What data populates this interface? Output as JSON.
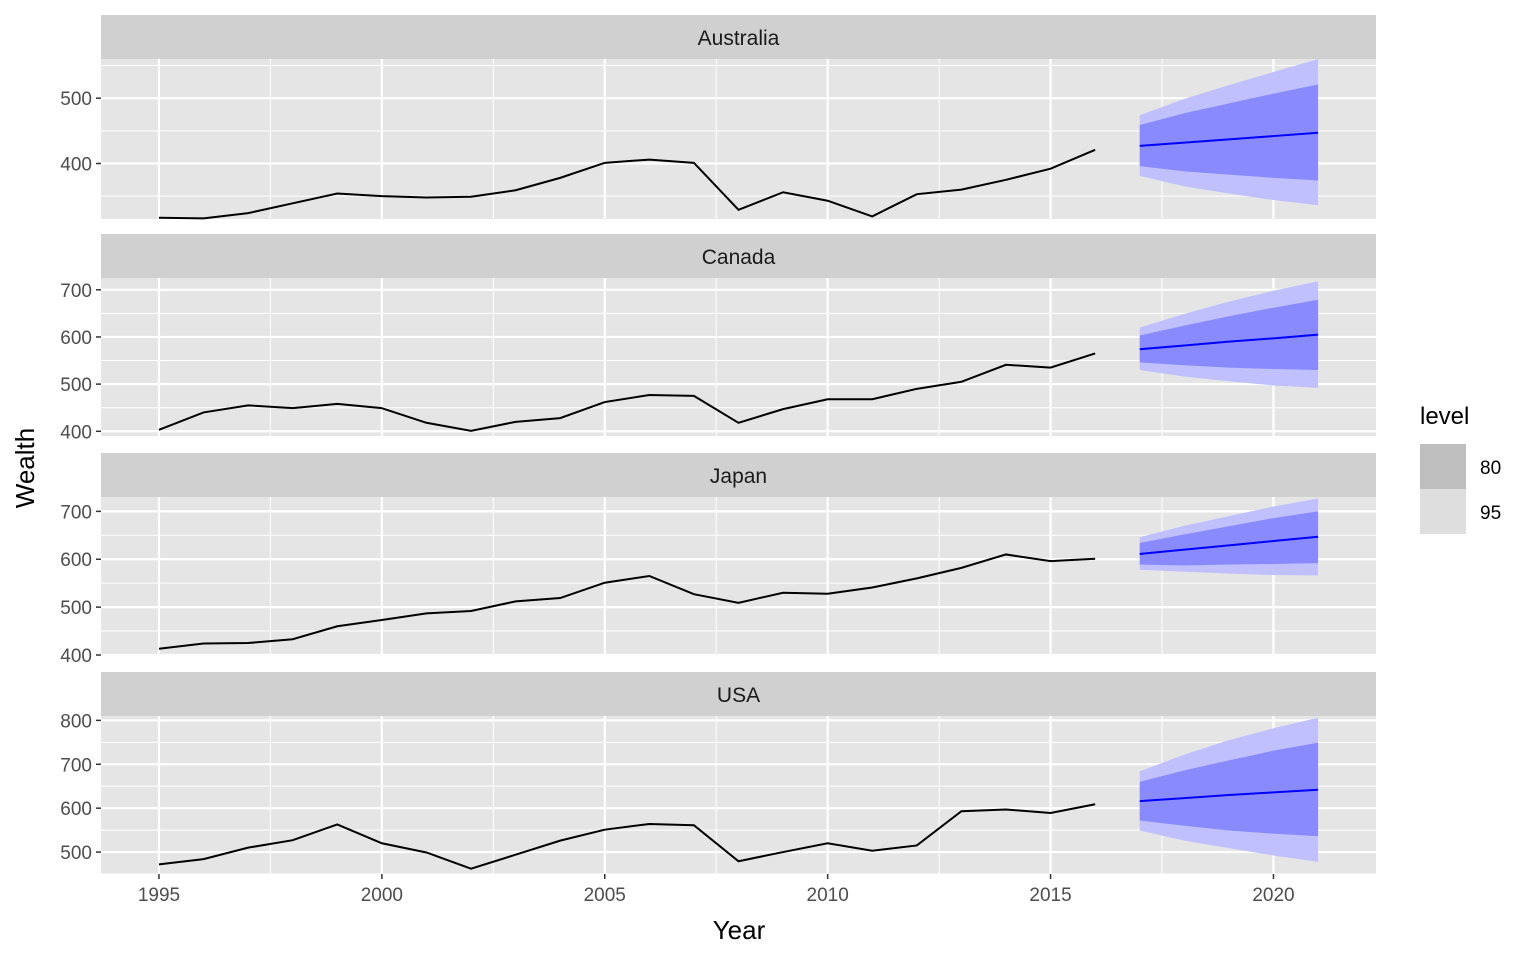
{
  "chart_data": {
    "type": "line",
    "title": "",
    "xlabel": "Year",
    "ylabel": "Wealth",
    "xlim": [
      1993.7,
      2022.3
    ],
    "x_ticks": [
      1995,
      2000,
      2005,
      2010,
      2015,
      2020
    ],
    "grid": true,
    "legend": {
      "title": "level",
      "placement": "right",
      "entries": [
        {
          "label": "80",
          "color": "#bebebe"
        },
        {
          "label": "95",
          "color": "#dedede"
        }
      ]
    },
    "colors": {
      "history_line": "#000000",
      "forecast_line": "#0000ff",
      "band_80": "#8a8aff",
      "band_95": "#c0c0ff",
      "panel_bg": "#e5e5e5",
      "strip_bg": "#d0d0d0",
      "gridline": "#ffffff"
    },
    "panels": [
      {
        "label": "Australia",
        "ylim": [
          315,
          560
        ],
        "y_ticks": [
          400,
          500
        ],
        "history": {
          "x": [
            1995,
            1996,
            1997,
            1998,
            1999,
            2000,
            2001,
            2002,
            2003,
            2004,
            2005,
            2006,
            2007,
            2008,
            2009,
            2010,
            2011,
            2012,
            2013,
            2014,
            2015,
            2016
          ],
          "y": [
            317,
            316,
            324,
            339,
            354,
            350,
            348,
            349,
            359,
            378,
            401,
            406,
            401,
            329,
            356,
            343,
            319,
            353,
            360,
            375,
            392,
            421
          ]
        },
        "forecast": {
          "x": [
            2017,
            2018,
            2019,
            2020,
            2021
          ],
          "mean": [
            427,
            432,
            437,
            442,
            447
          ],
          "lo80": [
            396,
            388,
            383,
            378,
            374
          ],
          "hi80": [
            459,
            477,
            492,
            507,
            521
          ],
          "lo95": [
            381,
            365,
            354,
            344,
            336
          ],
          "hi95": [
            474,
            499,
            520,
            540,
            560
          ]
        }
      },
      {
        "label": "Canada",
        "ylim": [
          390,
          725
        ],
        "y_ticks": [
          400,
          500,
          600,
          700
        ],
        "history": {
          "x": [
            1995,
            1996,
            1997,
            1998,
            1999,
            2000,
            2001,
            2002,
            2003,
            2004,
            2005,
            2006,
            2007,
            2008,
            2009,
            2010,
            2011,
            2012,
            2013,
            2014,
            2015,
            2016
          ],
          "y": [
            403,
            440,
            455,
            449,
            458,
            449,
            418,
            401,
            420,
            428,
            462,
            477,
            475,
            418,
            447,
            468,
            468,
            490,
            505,
            541,
            535,
            565
          ]
        },
        "forecast": {
          "x": [
            2017,
            2018,
            2019,
            2020,
            2021
          ],
          "mean": [
            574,
            582,
            590,
            597,
            605
          ],
          "lo80": [
            546,
            540,
            535,
            532,
            530
          ],
          "hi80": [
            603,
            624,
            644,
            662,
            679
          ],
          "lo95": [
            530,
            516,
            506,
            497,
            492
          ],
          "hi95": [
            620,
            649,
            675,
            698,
            718
          ]
        }
      },
      {
        "label": "Japan",
        "ylim": [
          400,
          730
        ],
        "y_ticks": [
          400,
          500,
          600,
          700
        ],
        "history": {
          "x": [
            1995,
            1996,
            1997,
            1998,
            1999,
            2000,
            2001,
            2002,
            2003,
            2004,
            2005,
            2006,
            2007,
            2008,
            2009,
            2010,
            2011,
            2012,
            2013,
            2014,
            2015,
            2016
          ],
          "y": [
            413,
            424,
            425,
            433,
            460,
            473,
            487,
            492,
            512,
            519,
            551,
            565,
            527,
            509,
            530,
            528,
            541,
            560,
            582,
            610,
            596,
            601
          ]
        },
        "forecast": {
          "x": [
            2017,
            2018,
            2019,
            2020,
            2021
          ],
          "mean": [
            611,
            620,
            629,
            638,
            647
          ],
          "lo80": [
            589,
            587,
            589,
            590,
            592
          ],
          "hi80": [
            634,
            652,
            669,
            686,
            700
          ],
          "lo95": [
            578,
            574,
            570,
            567,
            566
          ],
          "hi95": [
            646,
            670,
            690,
            710,
            727
          ]
        }
      },
      {
        "label": "USA",
        "ylim": [
          450,
          810
        ],
        "y_ticks": [
          500,
          600,
          700,
          800
        ],
        "history": {
          "x": [
            1995,
            1996,
            1997,
            1998,
            1999,
            2000,
            2001,
            2002,
            2003,
            2004,
            2005,
            2006,
            2007,
            2008,
            2009,
            2010,
            2011,
            2012,
            2013,
            2014,
            2015,
            2016
          ],
          "y": [
            472,
            484,
            510,
            527,
            563,
            520,
            499,
            462,
            494,
            526,
            551,
            564,
            561,
            479,
            500,
            520,
            503,
            515,
            593,
            597,
            589,
            609
          ]
        },
        "forecast": {
          "x": [
            2017,
            2018,
            2019,
            2020,
            2021
          ],
          "mean": [
            616,
            623,
            630,
            636,
            642
          ],
          "lo80": [
            572,
            560,
            549,
            542,
            536
          ],
          "hi80": [
            660,
            686,
            709,
            731,
            749
          ],
          "lo95": [
            549,
            526,
            509,
            492,
            478
          ],
          "hi95": [
            684,
            722,
            755,
            782,
            806
          ]
        }
      }
    ]
  }
}
